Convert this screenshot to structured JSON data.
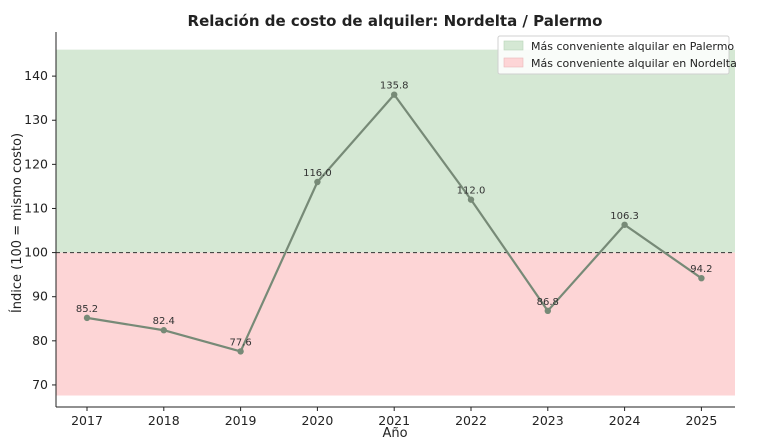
{
  "chart_data": {
    "type": "line",
    "title": "Relación de costo de alquiler: Nordelta / Palermo",
    "xlabel": "Año",
    "ylabel": "Índice (100 = mismo costo)",
    "categories": [
      "2017",
      "2018",
      "2019",
      "2020",
      "2021",
      "2022",
      "2023",
      "2024",
      "2025"
    ],
    "series": [
      {
        "values": [
          85.2,
          82.4,
          77.6,
          116.0,
          135.8,
          112.0,
          86.8,
          106.3,
          94.2
        ]
      }
    ],
    "data_labels": [
      "85.2",
      "82.4",
      "77.6",
      "116.0",
      "135.8",
      "112.0",
      "86.8",
      "106.3",
      "94.2"
    ],
    "ylim": [
      65,
      150
    ],
    "yticks": [
      70,
      80,
      90,
      100,
      110,
      120,
      130,
      140
    ],
    "reference_line": 100,
    "bands": [
      {
        "label": "Más conveniente alquilar en Palermo",
        "from": 100,
        "to": 146,
        "color": "#d5e8d4"
      },
      {
        "label": "Más conveniente alquilar en Nordelta",
        "from": 67.6,
        "to": 100,
        "color": "#fdd5d6"
      }
    ],
    "legend_position": "top-right",
    "line_color": "#778a77",
    "grid": false
  }
}
